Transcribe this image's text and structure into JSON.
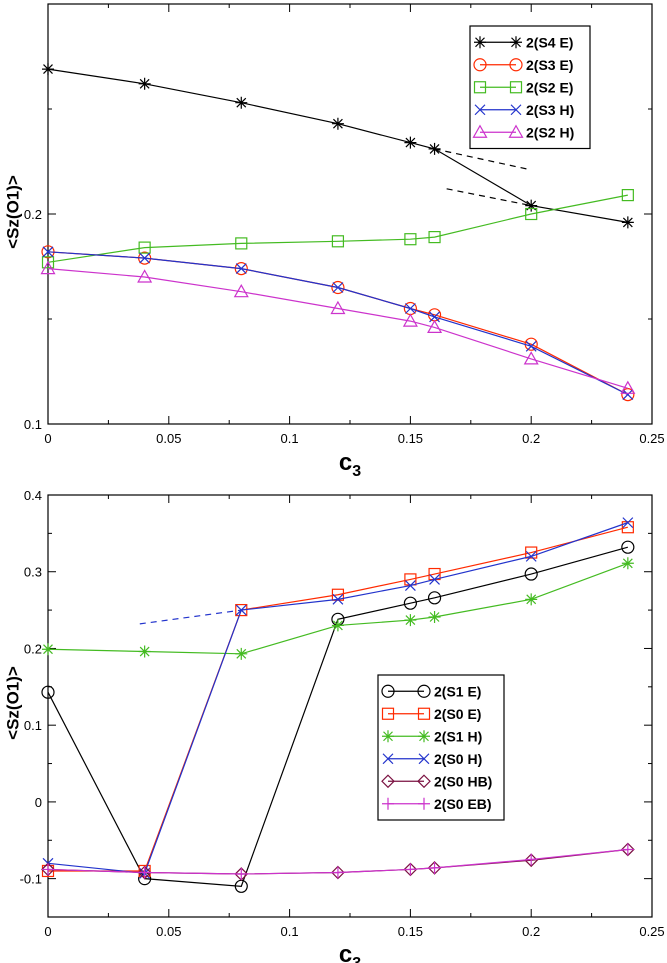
{
  "chart_data": [
    {
      "type": "line",
      "xlabel": "c",
      "xlabel_sub": "3",
      "ylabel": "<Sz(O1)>",
      "xlim": [
        0,
        0.25
      ],
      "ylim": [
        0.1,
        0.3
      ],
      "xticks": [
        "0",
        "0.05",
        "0.1",
        "0.15",
        "0.2",
        "0.25"
      ],
      "yticks": [
        {
          "value": 0.1,
          "label": "0.1"
        },
        {
          "value": 0.2,
          "label": "0.2"
        }
      ],
      "legend_position": "top-right",
      "series": [
        {
          "name": "2(S4 E)",
          "color": "#000000",
          "marker": "star",
          "x": [
            0,
            0.04,
            0.08,
            0.12,
            0.15,
            0.16,
            0.2,
            0.24
          ],
          "y": [
            0.269,
            0.262,
            0.253,
            0.243,
            0.234,
            0.231,
            0.204,
            0.196
          ]
        },
        {
          "name": "2(S3 E)",
          "color": "#ff2a00",
          "marker": "circle",
          "x": [
            0,
            0.04,
            0.08,
            0.12,
            0.15,
            0.16,
            0.2,
            0.24
          ],
          "y": [
            0.182,
            0.179,
            0.174,
            0.165,
            0.155,
            0.152,
            0.138,
            0.114
          ]
        },
        {
          "name": "2(S2 E)",
          "color": "#44bb22",
          "marker": "square",
          "x": [
            0,
            0.04,
            0.08,
            0.12,
            0.15,
            0.16,
            0.2,
            0.24
          ],
          "y": [
            0.177,
            0.184,
            0.186,
            0.187,
            0.188,
            0.189,
            0.2,
            0.209
          ]
        },
        {
          "name": "2(S3 H)",
          "color": "#2233cc",
          "marker": "x",
          "x": [
            0,
            0.04,
            0.08,
            0.12,
            0.15,
            0.16,
            0.2,
            0.24
          ],
          "y": [
            0.182,
            0.179,
            0.174,
            0.165,
            0.155,
            0.151,
            0.137,
            0.114
          ]
        },
        {
          "name": "2(S2 H)",
          "color": "#cc33cc",
          "marker": "triangle",
          "x": [
            0,
            0.04,
            0.08,
            0.12,
            0.15,
            0.16,
            0.2,
            0.24
          ],
          "y": [
            0.174,
            0.17,
            0.163,
            0.155,
            0.149,
            0.146,
            0.131,
            0.117
          ]
        }
      ],
      "dashed_guides": [
        {
          "color": "#000000",
          "x": [
            0.16,
            0.2
          ],
          "y": [
            0.231,
            0.221
          ]
        },
        {
          "color": "#000000",
          "x": [
            0.165,
            0.2
          ],
          "y": [
            0.212,
            0.204
          ]
        }
      ]
    },
    {
      "type": "line",
      "xlabel": "c",
      "xlabel_sub": "3",
      "ylabel": "<Sz(O1)>",
      "xlim": [
        0,
        0.25
      ],
      "ylim": [
        -0.15,
        0.4
      ],
      "xticks": [
        "0",
        "0.05",
        "0.1",
        "0.15",
        "0.2",
        "0.25"
      ],
      "yticks": [
        {
          "value": -0.1,
          "label": "-0.1"
        },
        {
          "value": 0,
          "label": "0"
        },
        {
          "value": 0.1,
          "label": "0.1"
        },
        {
          "value": 0.2,
          "label": "0.2"
        },
        {
          "value": 0.3,
          "label": "0.3"
        },
        {
          "value": 0.4,
          "label": "0.4"
        }
      ],
      "legend_position": "lower-right",
      "series": [
        {
          "name": "2(S1 E)",
          "color": "#000000",
          "marker": "circle",
          "x": [
            0,
            0.04,
            0.08,
            0.12,
            0.15,
            0.16,
            0.2,
            0.24
          ],
          "y": [
            0.143,
            -0.1,
            -0.11,
            0.238,
            0.259,
            0.266,
            0.297,
            0.332
          ]
        },
        {
          "name": "2(S0 E)",
          "color": "#ff2a00",
          "marker": "square",
          "x": [
            0,
            0.04,
            0.08,
            0.12,
            0.15,
            0.16,
            0.2,
            0.24
          ],
          "y": [
            -0.09,
            -0.09,
            0.25,
            0.27,
            0.29,
            0.297,
            0.325,
            0.358
          ]
        },
        {
          "name": "2(S1 H)",
          "color": "#44bb22",
          "marker": "star",
          "x": [
            0,
            0.04,
            0.08,
            0.12,
            0.15,
            0.16,
            0.2,
            0.24
          ],
          "y": [
            0.199,
            0.196,
            0.193,
            0.23,
            0.237,
            0.241,
            0.264,
            0.311
          ]
        },
        {
          "name": "2(S0 H)",
          "color": "#2233cc",
          "marker": "x",
          "x": [
            0,
            0.04,
            0.08,
            0.12,
            0.15,
            0.16,
            0.2,
            0.24
          ],
          "y": [
            -0.08,
            -0.093,
            0.25,
            0.264,
            0.282,
            0.29,
            0.32,
            0.364
          ]
        },
        {
          "name": "2(S0 HB)",
          "color": "#7a1040",
          "marker": "diamond",
          "x": [
            0,
            0.04,
            0.08,
            0.12,
            0.15,
            0.16,
            0.2,
            0.24
          ],
          "y": [
            -0.088,
            -0.092,
            -0.094,
            -0.092,
            -0.088,
            -0.086,
            -0.076,
            -0.062
          ]
        },
        {
          "name": "2(S0 EB)",
          "color": "#cc33cc",
          "marker": "plus",
          "x": [
            0,
            0.04,
            0.08,
            0.12,
            0.15,
            0.16,
            0.2,
            0.24
          ],
          "y": [
            -0.088,
            -0.092,
            -0.094,
            -0.092,
            -0.088,
            -0.086,
            -0.075,
            -0.062
          ]
        }
      ],
      "dashed_guides": [
        {
          "color": "#2233cc",
          "x": [
            0.038,
            0.08
          ],
          "y": [
            0.232,
            0.25
          ]
        }
      ]
    }
  ]
}
